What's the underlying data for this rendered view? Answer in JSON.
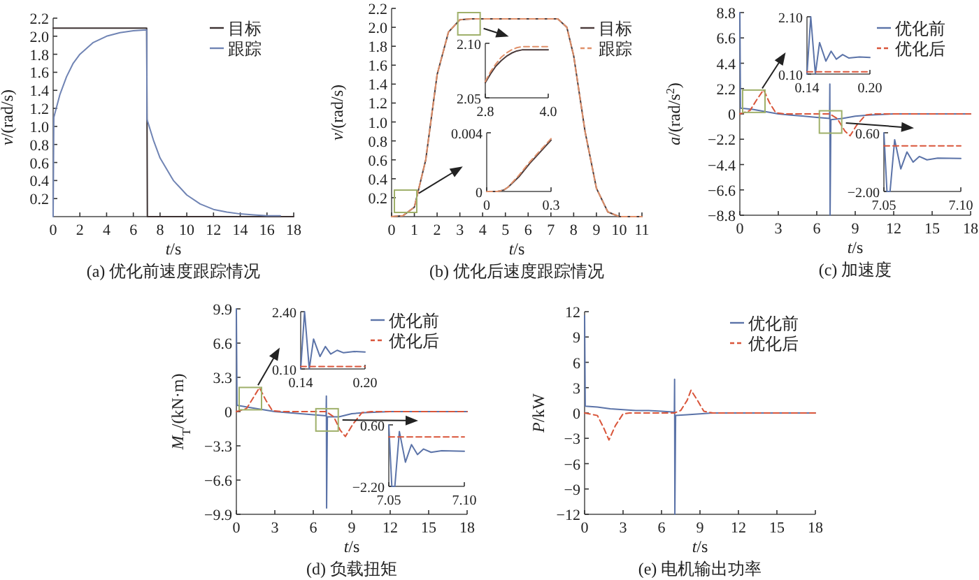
{
  "chart_data": [
    {
      "type": "line",
      "title": "(a)  优化前速度跟踪情况",
      "xlabel": "*t*/s",
      "ylabel": "*v*/(rad/s)",
      "xlim": [
        0,
        18
      ],
      "ylim": [
        0,
        2.2
      ],
      "xticks": [
        0,
        2,
        4,
        6,
        8,
        10,
        12,
        14,
        16,
        18
      ],
      "yticks": [
        0.2,
        0.4,
        0.6,
        0.8,
        {
          "value": 1,
          "label": "1.0"
        },
        1.2,
        1.4,
        1.6,
        1.8,
        {
          "value": 2,
          "label": "2.0"
        },
        2.2
      ],
      "legend": "top right",
      "series": [
        {
          "name": "目标",
          "color": "#3c3232",
          "line_style": "solid",
          "x": [
            0,
            7,
            7.05,
            18
          ],
          "values": [
            2.09,
            2.09,
            0,
            0
          ]
        },
        {
          "name": "跟踪",
          "color": "#7084b4",
          "line_style": "solid",
          "x": [
            0,
            0.05,
            0.5,
            1,
            1.5,
            2,
            3,
            4,
            5,
            6,
            7,
            7.02,
            7.5,
            8,
            9,
            10,
            11,
            12,
            13,
            14,
            15,
            16,
            17
          ],
          "values": [
            0,
            1.1,
            1.35,
            1.55,
            1.7,
            1.8,
            1.93,
            2.0,
            2.04,
            2.06,
            2.07,
            1.08,
            0.85,
            0.65,
            0.4,
            0.24,
            0.14,
            0.08,
            0.05,
            0.03,
            0.02,
            0.01,
            0.01
          ]
        }
      ]
    },
    {
      "type": "line",
      "title": "(b)  优化后速度跟踪情况",
      "xlabel": "*t*/s",
      "ylabel": "*v*/(rad/s)",
      "xlim": [
        0,
        11
      ],
      "ylim": [
        0,
        2.2
      ],
      "xticks": [
        0,
        1,
        2,
        3,
        4,
        5,
        6,
        7,
        8,
        9,
        10,
        11
      ],
      "yticks": [
        0.2,
        0.4,
        0.6,
        0.8,
        {
          "value": 1,
          "label": "1.0"
        },
        1.2,
        1.4,
        1.6,
        1.8,
        {
          "value": 2,
          "label": "2.0"
        },
        2.2
      ],
      "legend": "top right",
      "series": [
        {
          "name": "目标",
          "color": "#4a3a3a",
          "line_style": "solid",
          "x": [
            0,
            0.5,
            1,
            1.5,
            2,
            2.5,
            3,
            3.5,
            7.3,
            7.7,
            8,
            8.5,
            9,
            9.5,
            10,
            11
          ],
          "values": [
            0,
            0.01,
            0.1,
            0.6,
            1.5,
            1.95,
            2.08,
            2.09,
            2.09,
            2.0,
            1.7,
            0.9,
            0.3,
            0.05,
            0,
            0
          ]
        },
        {
          "name": "跟踪",
          "color": "#e0906a",
          "line_style": "dashed",
          "x": [
            0,
            0.5,
            1,
            1.5,
            2,
            2.5,
            3,
            3.5,
            7.3,
            7.7,
            8,
            8.5,
            9,
            9.5,
            10,
            11
          ],
          "values": [
            0,
            0.01,
            0.1,
            0.6,
            1.5,
            1.95,
            2.08,
            2.09,
            2.09,
            2.0,
            1.7,
            0.9,
            0.3,
            0.05,
            0,
            0
          ]
        }
      ]
    },
    {
      "type": "line",
      "xlim": [
        2.8,
        4.0
      ],
      "ylim": [
        2.05,
        2.1
      ],
      "xticks": [
        2.8,
        {
          "value": 4,
          "label": "4.0"
        }
      ],
      "yticks": [
        2.05,
        {
          "value": 2.1,
          "label": "2.10"
        }
      ],
      "series": [
        {
          "color": "#4a3a3a",
          "line_style": "solid",
          "x": [
            2.8,
            2.9,
            3.0,
            3.1,
            3.2,
            3.3,
            3.4,
            3.5,
            3.6,
            4.0
          ],
          "values": [
            2.064,
            2.072,
            2.079,
            2.084,
            2.088,
            2.091,
            2.093,
            2.094,
            2.094,
            2.094
          ]
        },
        {
          "color": "#e0906a",
          "line_style": "dashed",
          "x": [
            2.8,
            2.9,
            3.0,
            3.1,
            3.2,
            3.3,
            3.4,
            3.5,
            3.6,
            4.0
          ],
          "values": [
            2.065,
            2.074,
            2.081,
            2.087,
            2.091,
            2.094,
            2.096,
            2.097,
            2.097,
            2.097
          ]
        }
      ]
    },
    {
      "type": "line",
      "xlim": [
        0,
        0.3
      ],
      "ylim": [
        0,
        0.004
      ],
      "xticks": [
        0,
        0.3
      ],
      "yticks": [
        0,
        0.004
      ],
      "series": [
        {
          "color": "#4a3a3a",
          "line_style": "solid",
          "x": [
            0,
            0.05,
            0.08,
            0.1,
            0.15,
            0.2,
            0.25,
            0.3
          ],
          "values": [
            0,
            0,
            0.0001,
            0.0003,
            0.001,
            0.0019,
            0.0027,
            0.0035
          ]
        },
        {
          "color": "#e0906a",
          "line_style": "dashed",
          "x": [
            0,
            0.05,
            0.08,
            0.1,
            0.15,
            0.2,
            0.25,
            0.3
          ],
          "values": [
            0,
            0,
            0.0001,
            0.0003,
            0.0011,
            0.002,
            0.0028,
            0.0036
          ]
        }
      ]
    },
    {
      "type": "line",
      "title": "(c)  加速度",
      "xlabel": "*t*/s",
      "ylabel": "*a*/(rad/s$^{2}$)",
      "xlim": [
        0,
        18
      ],
      "ylim": [
        -8.8,
        8.8
      ],
      "xticks": [
        0,
        3,
        6,
        9,
        12,
        15,
        18
      ],
      "yticks": [
        {
          "value": -8.8,
          "label": "−8.8"
        },
        {
          "value": -6.6,
          "label": "−6.6"
        },
        {
          "value": -4.4,
          "label": "−4.4"
        },
        {
          "value": -2.2,
          "label": "−2.2"
        },
        0,
        2.2,
        4.4,
        6.6,
        8.8
      ],
      "legend": "top right",
      "series": [
        {
          "name": "优化前",
          "color": "#5b73a8",
          "line_style": "solid",
          "x": [
            0,
            0.05,
            1,
            2,
            3,
            4,
            5,
            6,
            7,
            7.02,
            7.04,
            7.1,
            8,
            9,
            10,
            12,
            18
          ],
          "values": [
            8.8,
            0.5,
            0.4,
            0.2,
            0,
            -0.1,
            -0.2,
            -0.3,
            -0.4,
            2.6,
            -8.8,
            -0.5,
            -0.4,
            -0.2,
            -0.1,
            0,
            0
          ]
        },
        {
          "name": "优化后",
          "color": "#d9553a",
          "line_style": "dashed",
          "x": [
            0,
            0.8,
            1.3,
            1.85,
            2.3,
            2.8,
            3.5,
            7,
            7.6,
            8.2,
            8.6,
            9.1,
            9.8,
            10.5,
            18
          ],
          "values": [
            0,
            0.3,
            1.2,
            2.1,
            1.0,
            0.1,
            0,
            0,
            -0.4,
            -1.5,
            -1.9,
            -1.0,
            -0.1,
            0,
            0
          ]
        }
      ]
    },
    {
      "type": "line",
      "xlim": [
        0.14,
        0.2
      ],
      "ylim": [
        0.1,
        2.1
      ],
      "xticks": [
        0.14,
        {
          "value": 0.2,
          "label": "0.20"
        }
      ],
      "yticks": [
        {
          "value": 0.1,
          "label": "0.10"
        },
        {
          "value": 2.1,
          "label": "2.10"
        }
      ],
      "series": [
        {
          "color": "#5b73a8",
          "line_style": "solid",
          "x": [
            0.14,
            0.1436,
            0.148,
            0.152,
            0.158,
            0.163,
            0.168,
            0.174,
            0.18,
            0.19,
            0.2
          ],
          "values": [
            0.1,
            2.1,
            0.1,
            1.2,
            0.55,
            0.9,
            0.62,
            0.78,
            0.66,
            0.7,
            0.68
          ]
        },
        {
          "color": "#d9553a",
          "line_style": "dashed",
          "x": [
            0.14,
            0.2
          ],
          "values": [
            0.18,
            0.18
          ]
        }
      ]
    },
    {
      "type": "line",
      "xlim": [
        7.05,
        7.1
      ],
      "ylim": [
        -2.0,
        0.6
      ],
      "xticks": [
        7.05,
        {
          "value": 7.1,
          "label": "7.10"
        }
      ],
      "yticks": [
        {
          "value": -2,
          "label": "−2.00"
        },
        {
          "value": 0.6,
          "label": "0.60"
        }
      ],
      "series": [
        {
          "color": "#5b73a8",
          "line_style": "solid",
          "x": [
            7.05,
            7.052,
            7.054,
            7.057,
            7.061,
            7.065,
            7.069,
            7.073,
            7.078,
            7.085,
            7.1
          ],
          "values": [
            0.6,
            -2.0,
            -2.0,
            0.29,
            -1.0,
            -0.25,
            -0.7,
            -0.45,
            -0.6,
            -0.52,
            -0.54
          ]
        },
        {
          "color": "#d9553a",
          "line_style": "dashed",
          "x": [
            7.05,
            7.1
          ],
          "values": [
            0.02,
            0.02
          ]
        }
      ]
    },
    {
      "type": "line",
      "title": "(d)  负载扭矩",
      "xlabel": "*t*/s",
      "ylabel": "*M*$_{T}$/(kN·m)",
      "xlim": [
        0,
        18
      ],
      "ylim": [
        -9.9,
        9.9
      ],
      "xticks": [
        0,
        3,
        6,
        9,
        12,
        15,
        18
      ],
      "yticks": [
        {
          "value": -9.9,
          "label": "−9.9"
        },
        {
          "value": -6.6,
          "label": "−6.6"
        },
        {
          "value": -3.3,
          "label": "−3.3"
        },
        0,
        3.3,
        6.6,
        9.9
      ],
      "legend": "top right",
      "series": [
        {
          "name": "优化前",
          "color": "#5b73a8",
          "line_style": "solid",
          "x": [
            0,
            0.05,
            1,
            2,
            3,
            4,
            5,
            6,
            7,
            7.02,
            7.04,
            7.1,
            8,
            9,
            10,
            12,
            18
          ],
          "values": [
            9.9,
            0.6,
            0.4,
            0.2,
            0,
            -0.1,
            -0.2,
            -0.3,
            -0.4,
            1.5,
            -9.3,
            -0.5,
            -0.5,
            -0.2,
            -0.1,
            0,
            0
          ]
        },
        {
          "name": "优化后",
          "color": "#d9553a",
          "line_style": "dashed",
          "x": [
            0,
            0.8,
            1.3,
            1.8,
            2.3,
            2.8,
            3.5,
            7,
            7.6,
            8.1,
            8.5,
            9.1,
            9.8,
            10.5,
            18
          ],
          "values": [
            0,
            0.3,
            1.3,
            2.3,
            1.1,
            0.1,
            0,
            0,
            -0.5,
            -1.8,
            -2.4,
            -1.2,
            -0.1,
            0,
            0
          ]
        }
      ]
    },
    {
      "type": "line",
      "xlim": [
        0.14,
        0.2
      ],
      "ylim": [
        0.1,
        2.4
      ],
      "xticks": [
        0.14,
        {
          "value": 0.2,
          "label": "0.20"
        }
      ],
      "yticks": [
        {
          "value": 0.1,
          "label": "0.10"
        },
        {
          "value": 2.4,
          "label": "2.40"
        }
      ],
      "series": [
        {
          "color": "#5b73a8",
          "line_style": "solid",
          "x": [
            0.14,
            0.1436,
            0.148,
            0.152,
            0.158,
            0.163,
            0.168,
            0.174,
            0.18,
            0.19,
            0.2
          ],
          "values": [
            0.1,
            2.4,
            0.1,
            1.3,
            0.6,
            1.0,
            0.7,
            0.85,
            0.75,
            0.8,
            0.78
          ]
        },
        {
          "color": "#d9553a",
          "line_style": "dashed",
          "x": [
            0.14,
            0.2
          ],
          "values": [
            0.2,
            0.2
          ]
        }
      ]
    },
    {
      "type": "line",
      "xlim": [
        7.05,
        7.1
      ],
      "ylim": [
        -2.2,
        0.6
      ],
      "xticks": [
        7.05,
        {
          "value": 7.1,
          "label": "7.10"
        }
      ],
      "yticks": [
        {
          "value": -2.2,
          "label": "−2.20"
        },
        {
          "value": 0.6,
          "label": "0.60"
        }
      ],
      "series": [
        {
          "color": "#5b73a8",
          "line_style": "solid",
          "x": [
            7.05,
            7.052,
            7.054,
            7.057,
            7.061,
            7.065,
            7.069,
            7.073,
            7.078,
            7.085,
            7.1
          ],
          "values": [
            0.6,
            -2.2,
            -2.2,
            0.3,
            -1.1,
            -0.3,
            -0.75,
            -0.5,
            -0.65,
            -0.58,
            -0.6
          ]
        },
        {
          "color": "#d9553a",
          "line_style": "dashed",
          "x": [
            7.05,
            7.1
          ],
          "values": [
            0.05,
            0.05
          ]
        }
      ]
    },
    {
      "type": "line",
      "title": "(e)  电机输出功率",
      "xlabel": "*t*/s",
      "ylabel": "*P*/kW",
      "xlim": [
        0,
        18
      ],
      "ylim": [
        -12,
        12
      ],
      "xticks": [
        0,
        3,
        6,
        9,
        12,
        15,
        18
      ],
      "yticks": [
        {
          "value": -12,
          "label": "−12"
        },
        {
          "value": -9,
          "label": "−9"
        },
        {
          "value": -6,
          "label": "−6"
        },
        {
          "value": -3,
          "label": "−3"
        },
        0,
        3,
        6,
        9,
        12
      ],
      "legend": "top right",
      "series": [
        {
          "name": "优化前",
          "color": "#5b73a8",
          "line_style": "solid",
          "x": [
            0,
            0.05,
            1,
            2,
            3,
            4,
            5,
            6,
            7,
            7.02,
            7.04,
            7.1,
            8,
            9,
            10,
            18
          ],
          "values": [
            11.5,
            0.8,
            0.7,
            0.5,
            0.4,
            0.3,
            0.3,
            0.2,
            0.1,
            4,
            -12,
            -0.3,
            -0.2,
            -0.1,
            0,
            0
          ]
        },
        {
          "name": "优化后",
          "color": "#d9553a",
          "line_style": "dashed",
          "x": [
            0,
            1,
            1.5,
            1.9,
            2.4,
            3,
            3.5,
            7,
            7.5,
            8,
            8.3,
            8.8,
            9.3,
            10,
            18
          ],
          "values": [
            0,
            -0.3,
            -1.8,
            -3.2,
            -1.5,
            -0.1,
            0,
            0,
            0.3,
            1.5,
            2.7,
            1.5,
            0.2,
            0,
            0
          ]
        }
      ]
    }
  ]
}
